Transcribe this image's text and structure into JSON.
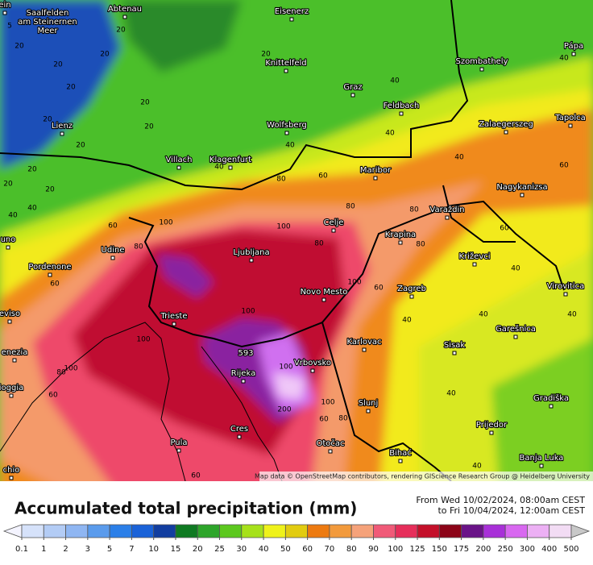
{
  "map": {
    "cities": [
      "ein",
      "Abtenau",
      "Eisenerz",
      "Knittelfeld",
      "Szombathely",
      "Pápa",
      "Graz",
      "Feldbach",
      "Lienz",
      "Wolfsberg",
      "Zalaegerszeg",
      "Tapolca",
      "Villach",
      "Klagenfurt",
      "Maribor",
      "Nagykanizsa",
      "Celje",
      "Varaždin",
      "Krapina",
      "Udine",
      "Ljubljana",
      "Križevci",
      "Pordenone",
      "Novo Mesto",
      "Zagreb",
      "Virovitica",
      "eviso",
      "Trieste",
      "Karlovac",
      "Sisak",
      "Garešnica",
      "enezia",
      "Rijeka",
      "Vrbovsko",
      "ioggia",
      "Slunj",
      "Gradiška",
      "Prijedor",
      "Cres",
      "Pula",
      "Otočac",
      "Bihać",
      "Banja Luka",
      "uno",
      "chio"
    ],
    "multi_line_city": [
      "Saalfelden",
      "am Steinernen",
      "Meer"
    ],
    "contour_labels": [
      5,
      20,
      20,
      20,
      20,
      20,
      20,
      20,
      20,
      20,
      20,
      20,
      20,
      20,
      40,
      40,
      40,
      40,
      40,
      40,
      40,
      40,
      40,
      40,
      40,
      40,
      40,
      40,
      60,
      60,
      60,
      60,
      60,
      60,
      60,
      60,
      60,
      80,
      80,
      80,
      80,
      80,
      80,
      80,
      80,
      100,
      100,
      100,
      100,
      100,
      200,
      100,
      100,
      100
    ],
    "maximum": "593",
    "attribution": "Map data © OpenStreetMap contributors, rendering GIScience Research Group @ Heidelberg University"
  },
  "legend": {
    "title": "Accumulated total precipitation (mm)",
    "period": [
      "From Wed 10/02/2024, 08:00am CEST",
      "to Fri 10/04/2024, 12:00am CEST"
    ],
    "bounds": [
      0.1,
      1,
      2,
      3,
      5,
      7,
      10,
      15,
      20,
      25,
      30,
      40,
      50,
      60,
      70,
      80,
      90,
      100,
      125,
      150,
      175,
      200,
      250,
      300,
      400,
      500
    ],
    "colors": [
      "#f4f4ff",
      "#d6e2fa",
      "#b3ccf5",
      "#8fb6f2",
      "#5a9bec",
      "#2b7fe8",
      "#1a62d8",
      "#123ea0",
      "#0f7a22",
      "#2da52a",
      "#5cc81e",
      "#a6e11a",
      "#eff21a",
      "#e2cc10",
      "#ed7a10",
      "#f29a3c",
      "#f5a27a",
      "#f05a78",
      "#e62e5a",
      "#c4102a",
      "#8c0418",
      "#6a1488",
      "#a830d8",
      "#d868f0",
      "#ecb0f4",
      "#f2dcf4",
      "#c8c8c8"
    ]
  }
}
